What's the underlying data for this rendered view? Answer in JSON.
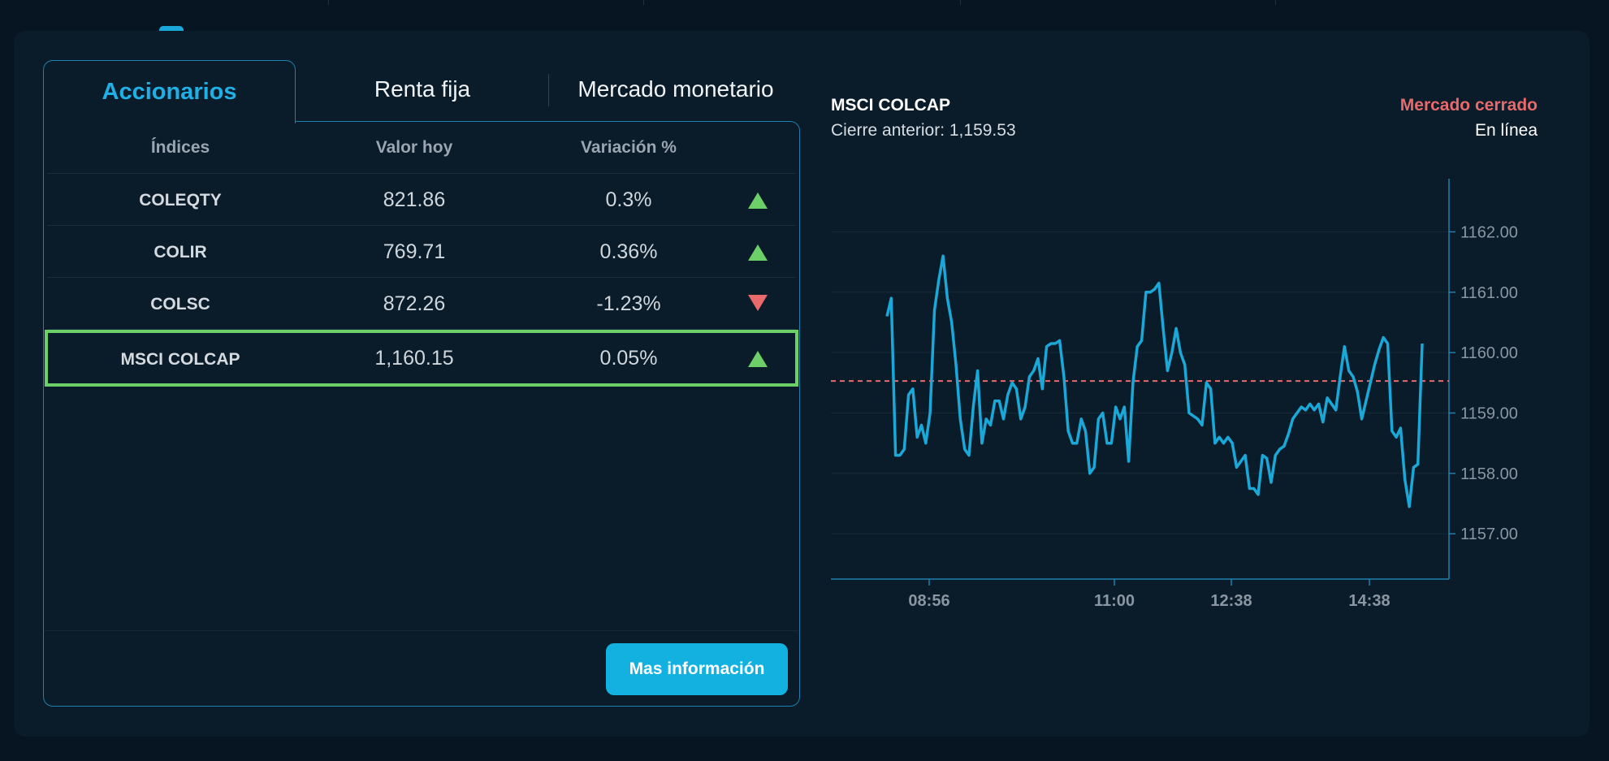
{
  "tabs": [
    {
      "label": "Accionarios",
      "active": true
    },
    {
      "label": "Renta fija",
      "active": false
    },
    {
      "label": "Mercado monetario",
      "active": false
    }
  ],
  "table": {
    "headers": [
      "Índices",
      "Valor hoy",
      "Variación %"
    ],
    "rows": [
      {
        "name": "COLEQTY",
        "value": "821.86",
        "change": "0.3%",
        "direction": "up"
      },
      {
        "name": "COLIR",
        "value": "769.71",
        "change": "0.36%",
        "direction": "up"
      },
      {
        "name": "COLSC",
        "value": "872.26",
        "change": "-1.23%",
        "direction": "down"
      },
      {
        "name": "MSCI COLCAP",
        "value": "1,160.15",
        "change": "0.05%",
        "direction": "up",
        "selected": true
      }
    ]
  },
  "more_button": "Mas información",
  "chart_header": {
    "title": "MSCI COLCAP",
    "previous_close": "Cierre anterior: 1,159.53",
    "market_status": "Mercado cerrado",
    "online_status": "En línea"
  },
  "colors": {
    "accent": "#1fb0e6",
    "up": "#6ccf68",
    "down": "#e86a6a",
    "line": "#1aa8d8",
    "reference": "#e86a6a"
  },
  "chart_data": {
    "type": "line",
    "title": "MSCI COLCAP",
    "x_tick_labels": [
      "08:56",
      "11:00",
      "12:38",
      "14:38"
    ],
    "y_ticks": [
      1157.0,
      1158.0,
      1159.0,
      1160.0,
      1161.0,
      1162.0
    ],
    "y_tick_labels": [
      "1157.00",
      "1158.00",
      "1159.00",
      "1160.00",
      "1161.00",
      "1162.00"
    ],
    "ylim": [
      1156.25,
      1162.88
    ],
    "reference_line": 1159.53,
    "grid": true,
    "series": [
      {
        "values": [
          1160.6,
          1160.9,
          1158.3,
          1158.3,
          1158.4,
          1159.3,
          1159.4,
          1158.6,
          1158.8,
          1158.5,
          1159.0,
          1160.7,
          1161.2,
          1161.6,
          1160.9,
          1160.5,
          1159.8,
          1158.9,
          1158.4,
          1158.3,
          1159.1,
          1159.7,
          1158.5,
          1158.9,
          1158.8,
          1159.2,
          1159.2,
          1158.9,
          1159.3,
          1159.5,
          1159.4,
          1158.9,
          1159.1,
          1159.6,
          1159.7,
          1159.9,
          1159.4,
          1160.1,
          1160.15,
          1160.15,
          1160.2,
          1159.6,
          1158.7,
          1158.5,
          1158.5,
          1158.9,
          1158.7,
          1158.0,
          1158.1,
          1158.9,
          1159.0,
          1158.5,
          1158.5,
          1159.1,
          1158.9,
          1159.1,
          1158.2,
          1159.5,
          1160.1,
          1160.2,
          1161.0,
          1161.0,
          1161.05,
          1161.15,
          1160.4,
          1159.7,
          1160.0,
          1160.4,
          1160.0,
          1159.8,
          1159.0,
          1158.95,
          1158.9,
          1158.8,
          1159.5,
          1159.4,
          1158.5,
          1158.6,
          1158.5,
          1158.6,
          1158.5,
          1158.1,
          1158.2,
          1158.3,
          1157.75,
          1157.75,
          1157.65,
          1158.3,
          1158.25,
          1157.85,
          1158.3,
          1158.4,
          1158.45,
          1158.65,
          1158.9,
          1159.0,
          1159.1,
          1159.05,
          1159.15,
          1159.05,
          1159.15,
          1158.85,
          1159.25,
          1159.15,
          1159.05,
          1159.6,
          1160.1,
          1159.7,
          1159.6,
          1159.35,
          1158.9,
          1159.2,
          1159.5,
          1159.8,
          1160.05,
          1160.25,
          1160.15,
          1158.7,
          1158.6,
          1158.75,
          1157.9,
          1157.45,
          1158.1,
          1158.15,
          1160.15
        ]
      }
    ]
  }
}
